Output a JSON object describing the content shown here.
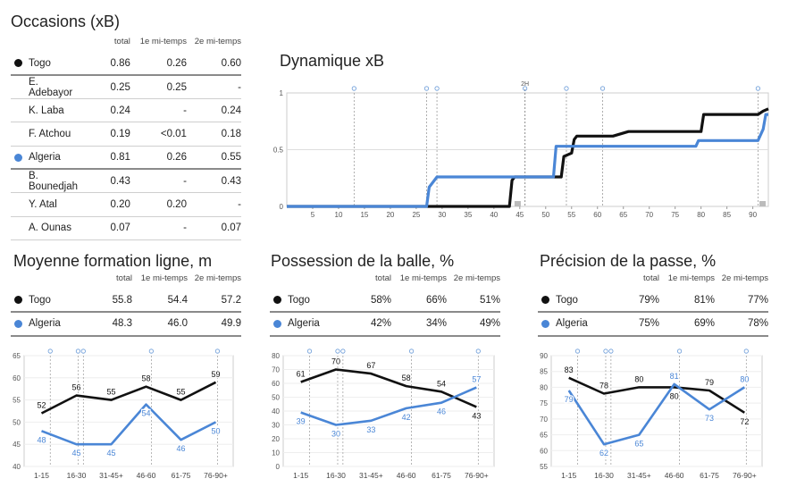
{
  "colors": {
    "togo": "#111111",
    "algeria": "#4a86d6",
    "grid": "#dddddd",
    "vline": "#9a9a9a"
  },
  "occasions": {
    "title": "Occasions (xB)",
    "headers": [
      "total",
      "1e mi-temps",
      "2e mi-temps"
    ],
    "rows": [
      {
        "name": "Togo",
        "team": "togo",
        "v": [
          "0.86",
          "0.26",
          "0.60"
        ]
      },
      {
        "name": "E. Adebayor",
        "v": [
          "0.25",
          "0.25",
          "-"
        ]
      },
      {
        "name": "K. Laba",
        "v": [
          "0.24",
          "-",
          "0.24"
        ]
      },
      {
        "name": "F. Atchou",
        "v": [
          "0.19",
          "<0.01",
          "0.18"
        ]
      },
      {
        "name": "Algeria",
        "team": "algeria",
        "v": [
          "0.81",
          "0.26",
          "0.55"
        ]
      },
      {
        "name": "B. Bounedjah",
        "v": [
          "0.43",
          "-",
          "0.43"
        ]
      },
      {
        "name": "Y. Atal",
        "v": [
          "0.20",
          "0.20",
          "-"
        ]
      },
      {
        "name": "A. Ounas",
        "v": [
          "0.07",
          "-",
          "0.07"
        ]
      }
    ]
  },
  "sections": [
    {
      "title": "Moyenne formation ligne, m",
      "headers": [
        "total",
        "1e mi-temps",
        "2e mi-temps"
      ],
      "rows": [
        {
          "name": "Togo",
          "team": "togo",
          "v": [
            "55.8",
            "54.4",
            "57.2"
          ]
        },
        {
          "name": "Algeria",
          "team": "algeria",
          "v": [
            "48.3",
            "46.0",
            "49.9"
          ]
        }
      ]
    },
    {
      "title": "Possession de la balle, %",
      "headers": [
        "total",
        "1e mi-temps",
        "2e mi-temps"
      ],
      "rows": [
        {
          "name": "Togo",
          "team": "togo",
          "v": [
            "58%",
            "66%",
            "51%"
          ]
        },
        {
          "name": "Algeria",
          "team": "algeria",
          "v": [
            "42%",
            "34%",
            "49%"
          ]
        }
      ]
    },
    {
      "title": "Précision de la passe, %",
      "headers": [
        "total",
        "1e mi-temps",
        "2e mi-temps"
      ],
      "rows": [
        {
          "name": "Togo",
          "team": "togo",
          "v": [
            "79%",
            "81%",
            "77%"
          ]
        },
        {
          "name": "Algeria",
          "team": "algeria",
          "v": [
            "75%",
            "69%",
            "78%"
          ]
        }
      ]
    }
  ],
  "chart_data": [
    {
      "type": "line",
      "title": "Dynamique xB",
      "xlim": [
        0,
        93
      ],
      "ylim": [
        0,
        1
      ],
      "xticks": [
        "5",
        "10",
        "15",
        "20",
        "25",
        "30",
        "35",
        "40",
        "45",
        "50",
        "55",
        "60",
        "65",
        "70",
        "75",
        "80",
        "85",
        "90"
      ],
      "yticks": [
        "0",
        "0.5",
        "1"
      ],
      "half_label": "2H",
      "event_minutes": [
        13,
        27,
        29,
        46,
        54,
        61,
        91
      ],
      "series": [
        {
          "name": "Togo",
          "team": "togo",
          "x": [
            0,
            43,
            43.5,
            44,
            53,
            53.5,
            55,
            55.5,
            56,
            57,
            63,
            66,
            66.5,
            80,
            80.5,
            91,
            92,
            93
          ],
          "y": [
            0,
            0,
            0.23,
            0.26,
            0.26,
            0.44,
            0.47,
            0.59,
            0.62,
            0.62,
            0.62,
            0.66,
            0.66,
            0.66,
            0.81,
            0.81,
            0.84,
            0.86
          ]
        },
        {
          "name": "Algeria",
          "team": "algeria",
          "x": [
            0,
            27,
            27.5,
            28,
            29,
            51.5,
            52,
            53,
            79,
            79.5,
            91,
            92,
            92.5,
            93
          ],
          "y": [
            0,
            0,
            0.17,
            0.2,
            0.26,
            0.26,
            0.53,
            0.53,
            0.53,
            0.58,
            0.58,
            0.68,
            0.81,
            0.81
          ]
        }
      ]
    },
    {
      "type": "line",
      "categories": [
        "1-15",
        "16-30",
        "31-45+",
        "46-60",
        "61-75",
        "76-90+"
      ],
      "ylim": [
        40,
        65
      ],
      "yticks": [
        "40",
        "45",
        "50",
        "55",
        "60",
        "65"
      ],
      "series": [
        {
          "name": "Togo",
          "team": "togo",
          "values": [
            52,
            56,
            55,
            58,
            55,
            59
          ]
        },
        {
          "name": "Algeria",
          "team": "algeria",
          "values": [
            48,
            45,
            45,
            54,
            46,
            50
          ]
        }
      ]
    },
    {
      "type": "line",
      "categories": [
        "1-15",
        "16-30",
        "31-45+",
        "46-60",
        "61-75",
        "76-90+"
      ],
      "ylim": [
        0,
        80
      ],
      "yticks": [
        "0",
        "10",
        "20",
        "30",
        "40",
        "50",
        "60",
        "70",
        "80"
      ],
      "series": [
        {
          "name": "Togo",
          "team": "togo",
          "values": [
            61,
            70,
            67,
            58,
            54,
            43
          ]
        },
        {
          "name": "Algeria",
          "team": "algeria",
          "values": [
            39,
            30,
            33,
            42,
            46,
            57
          ]
        }
      ]
    },
    {
      "type": "line",
      "categories": [
        "1-15",
        "16-30",
        "31-45+",
        "46-60",
        "61-75",
        "76-90+"
      ],
      "ylim": [
        55,
        90
      ],
      "yticks": [
        "55",
        "60",
        "65",
        "70",
        "75",
        "80",
        "85",
        "90"
      ],
      "series": [
        {
          "name": "Togo",
          "team": "togo",
          "values": [
            83,
            78,
            80,
            80,
            79,
            72
          ]
        },
        {
          "name": "Algeria",
          "team": "algeria",
          "values": [
            79,
            62,
            65,
            81,
            73,
            80
          ]
        }
      ]
    }
  ]
}
